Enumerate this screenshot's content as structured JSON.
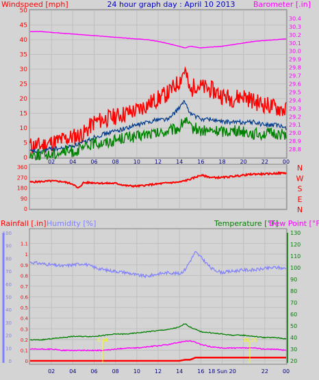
{
  "header": {
    "title": "24 hour graph day : April 10 2013",
    "left_label": "Windspeed [mph]",
    "right_label": "Barometer [.in]"
  },
  "x_axis": {
    "tick_labels": [
      "02",
      "04",
      "06",
      "08",
      "10",
      "12",
      "14",
      "16",
      "18",
      "20",
      "22",
      "00"
    ],
    "bottom_tick_labels": [
      "02",
      "04",
      "06",
      "08",
      "10",
      "12",
      "14",
      "16",
      "18 Sun 20",
      "",
      "22",
      "00"
    ]
  },
  "colors": {
    "bg": "#d4d4d4",
    "wind_gust": "#ff0000",
    "wind_avg": "#003a8c",
    "wind_speed": "#008000",
    "barometer": "#ff00ff",
    "direction": "#ff0000",
    "humidity": "#7f7fff",
    "temperature": "#008000",
    "dewpoint": "#ff00ff",
    "rainfall": "#ff0000",
    "sun_marker": "#ffff00"
  },
  "chart_data": [
    {
      "type": "line",
      "panel": "wind_barometer",
      "title": "24 hour graph day : April 10 2013",
      "xlabel": "",
      "ylabel": "Windspeed [mph]",
      "y2label": "Barometer [.in]",
      "x_hours": [
        0,
        1,
        2,
        3,
        4,
        5,
        6,
        7,
        8,
        9,
        10,
        11,
        12,
        13,
        14,
        14.5,
        15,
        15.5,
        16,
        17,
        18,
        19,
        20,
        21,
        22,
        23,
        24
      ],
      "ylim": [
        0,
        50
      ],
      "y_ticks": [
        0,
        5,
        10,
        15,
        20,
        25,
        30,
        35,
        40,
        45,
        50
      ],
      "y2lim": [
        28.7,
        30.5
      ],
      "y2_ticks": [
        28.8,
        28.9,
        29.0,
        29.1,
        29.2,
        29.3,
        29.4,
        29.5,
        29.6,
        29.7,
        29.8,
        29.9,
        30.0,
        30.1,
        30.2,
        30.3,
        30.4
      ],
      "series": [
        {
          "name": "gust",
          "axis": "left",
          "values": [
            4,
            4,
            5,
            6,
            7,
            8,
            12,
            13,
            14,
            15,
            16,
            18,
            20,
            22,
            26,
            30,
            22,
            25,
            24,
            23,
            21,
            20,
            21,
            19,
            18,
            17,
            16
          ]
        },
        {
          "name": "average",
          "axis": "left",
          "values": [
            2,
            2,
            3,
            3,
            4,
            5,
            7,
            8,
            9,
            10,
            11,
            12,
            13,
            13,
            17,
            19,
            15,
            14,
            13,
            13,
            12,
            12,
            12,
            12,
            11,
            11,
            10
          ]
        },
        {
          "name": "speed",
          "axis": "left",
          "values": [
            1,
            1,
            1,
            2,
            2,
            3,
            5,
            5,
            6,
            7,
            7,
            8,
            8,
            9,
            10,
            13,
            10,
            10,
            9,
            9,
            9,
            9,
            9,
            8,
            8,
            8,
            8
          ]
        },
        {
          "name": "barometer",
          "axis": "right",
          "values": [
            30.24,
            30.24,
            30.23,
            30.22,
            30.21,
            30.2,
            30.19,
            30.18,
            30.17,
            30.16,
            30.15,
            30.14,
            30.12,
            30.09,
            30.06,
            30.04,
            30.06,
            30.05,
            30.04,
            30.05,
            30.06,
            30.08,
            30.1,
            30.12,
            30.13,
            30.14,
            30.15
          ]
        }
      ]
    },
    {
      "type": "line",
      "panel": "wind_direction",
      "ylim": [
        0,
        360
      ],
      "y_tick_values": [
        0,
        90,
        180,
        270,
        360
      ],
      "y_tick_labels": [
        "0",
        "90",
        "180",
        "270",
        "360"
      ],
      "compass_labels": [
        "N",
        "W",
        "S",
        "E",
        "N"
      ],
      "x_hours": [
        0,
        1,
        2,
        3,
        4,
        4.5,
        5,
        6,
        7,
        8,
        9,
        10,
        11,
        12,
        13,
        14,
        15,
        16,
        17,
        18,
        19,
        20,
        21,
        22,
        23,
        24
      ],
      "series": [
        {
          "name": "direction",
          "values": [
            230,
            235,
            240,
            235,
            215,
            175,
            225,
            225,
            220,
            220,
            200,
            195,
            205,
            215,
            225,
            230,
            255,
            290,
            270,
            270,
            280,
            290,
            300,
            300,
            305,
            310
          ]
        }
      ]
    },
    {
      "type": "line",
      "panel": "temp_humidity_rain",
      "left_label": "Rainfall [.in]",
      "humidity_label": "Humidity [%]",
      "temperature_label": "Temperature [°F]",
      "dewpoint_label": "Dew Point [°F]",
      "rain_ylim": [
        0,
        1.2
      ],
      "rain_ticks": [
        0,
        0.1,
        0.2,
        0.3,
        0.4,
        0.5,
        0.6,
        0.7,
        0.8,
        0.9,
        1,
        1.1
      ],
      "humidity_ylim": [
        0,
        100
      ],
      "humidity_ticks": [
        0,
        10,
        20,
        30,
        40,
        50,
        60,
        70,
        80,
        90,
        100
      ],
      "temp_ylim": [
        20,
        130
      ],
      "temp_ticks": [
        20,
        30,
        40,
        50,
        60,
        70,
        80,
        90,
        100,
        110,
        120,
        130
      ],
      "x_hours": [
        0,
        1,
        2,
        3,
        4,
        5,
        6,
        7,
        8,
        9,
        10,
        11,
        12,
        13,
        14,
        14.5,
        15,
        15.5,
        16,
        17,
        18,
        19,
        20,
        21,
        22,
        23,
        24
      ],
      "sun_marker_labels": [
        "6:46",
        "20:36"
      ],
      "sun_marker_hours": [
        6.8,
        20.6
      ],
      "series": [
        {
          "name": "humidity",
          "values": [
            77,
            76,
            75,
            74,
            75,
            76,
            73,
            71,
            70,
            69,
            67,
            66,
            68,
            69,
            68,
            71,
            78,
            85,
            81,
            72,
            69,
            70,
            71,
            71,
            72,
            73,
            72
          ]
        },
        {
          "name": "temperature",
          "values": [
            38,
            38,
            39,
            40,
            41,
            41,
            41,
            42,
            43,
            43,
            44,
            45,
            46,
            47,
            49,
            52,
            49,
            47,
            45,
            44,
            43,
            42,
            42,
            41,
            40,
            40,
            39
          ]
        },
        {
          "name": "dewpoint",
          "values": [
            30,
            30,
            30,
            29,
            29,
            29,
            29,
            29,
            30,
            31,
            31,
            32,
            33,
            34,
            36,
            37,
            37,
            36,
            34,
            32,
            31,
            31,
            31,
            31,
            30,
            30,
            29
          ]
        },
        {
          "name": "rainfall",
          "values": [
            0,
            0,
            0,
            0,
            0,
            0,
            0,
            0,
            0,
            0,
            0,
            0,
            0,
            0,
            0,
            0.01,
            0.01,
            0.03,
            0.03,
            0.03,
            0.03,
            0.03,
            0.03,
            0.03,
            0.03,
            0.03,
            0.03
          ]
        }
      ]
    }
  ]
}
